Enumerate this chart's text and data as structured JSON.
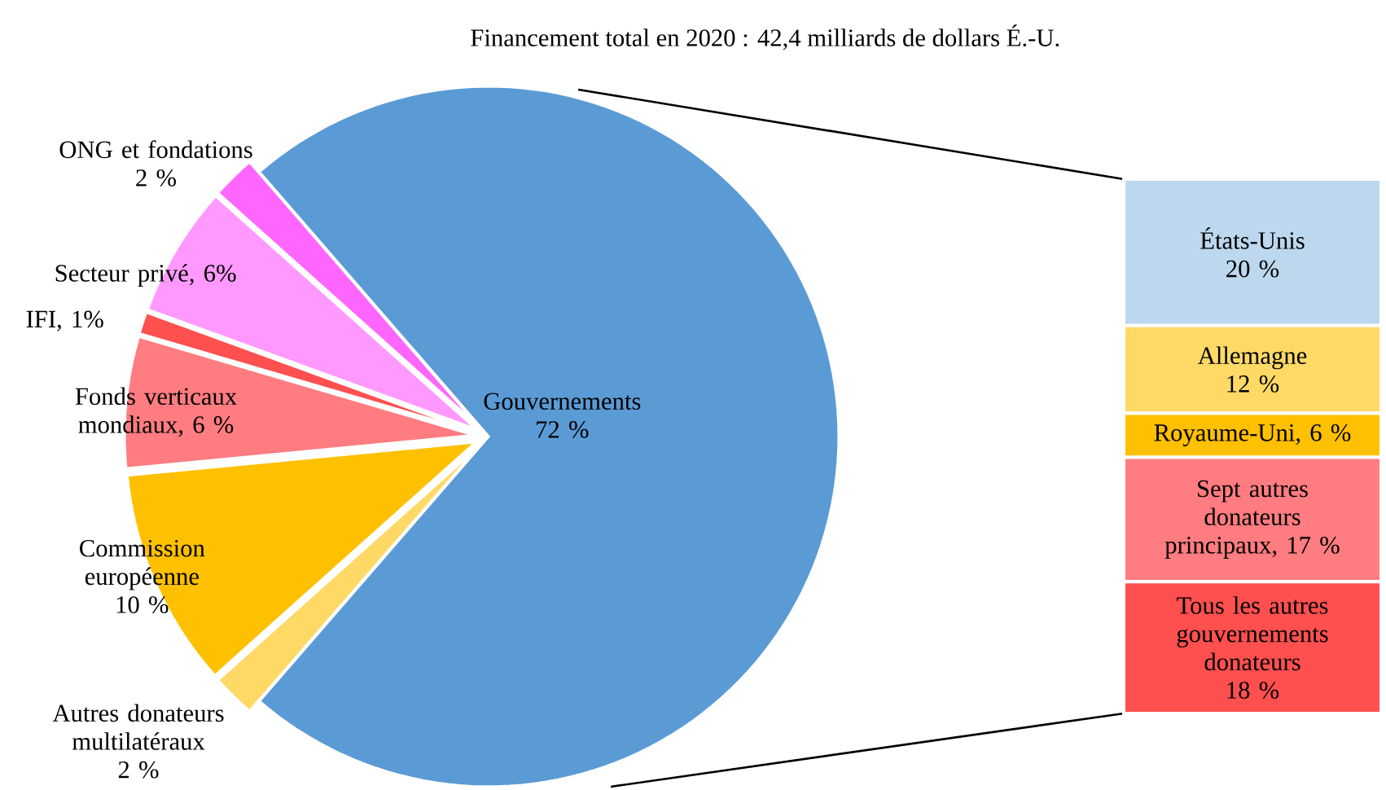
{
  "chart_data": [
    {
      "type": "pie",
      "title": "Financement total en 2020 : 42,4 milliards de dollars É.-U.",
      "categories": [
        "Gouvernements",
        "ONG et fondations",
        "Secteur privé",
        "IFI",
        "Fonds verticaux mondiaux",
        "Commission européenne",
        "Autres donateurs multilatéraux"
      ],
      "values": [
        72,
        2,
        6,
        1,
        6,
        10,
        2
      ],
      "value_labels": [
        "72 %",
        "2 %",
        ", 6%",
        ", 1%",
        ", 6 %",
        "10 %",
        "2 %"
      ],
      "colors": [
        "#5b9bd5",
        "#ff66ff",
        "#ff99ff",
        "#ff5050",
        "#ff7c80",
        "#ffc000",
        "#ffd966"
      ]
    },
    {
      "type": "bar",
      "stacked": true,
      "categories": [
        null
      ],
      "series": [
        {
          "name": "Tous les autres gouvernements donateurs",
          "color": "#ff4f4f",
          "values": [
            18
          ],
          "value_labels": [
            "18 %"
          ]
        },
        {
          "name": "Sept autres donateurs principaux",
          "color": "#ff7c80",
          "values": [
            17
          ],
          "value_labels": [
            ", 17 %"
          ]
        },
        {
          "name": "Royaume-Uni",
          "color": "#ffc000",
          "values": [
            6
          ],
          "value_labels": [
            ", 6 %"
          ]
        },
        {
          "name": "Allemagne",
          "color": "#ffd966",
          "values": [
            12
          ],
          "value_labels": [
            "12 %"
          ]
        },
        {
          "name": "États-Unis",
          "color": "#bdd7ee",
          "values": [
            20
          ],
          "value_labels": [
            "20 %"
          ]
        }
      ]
    }
  ]
}
